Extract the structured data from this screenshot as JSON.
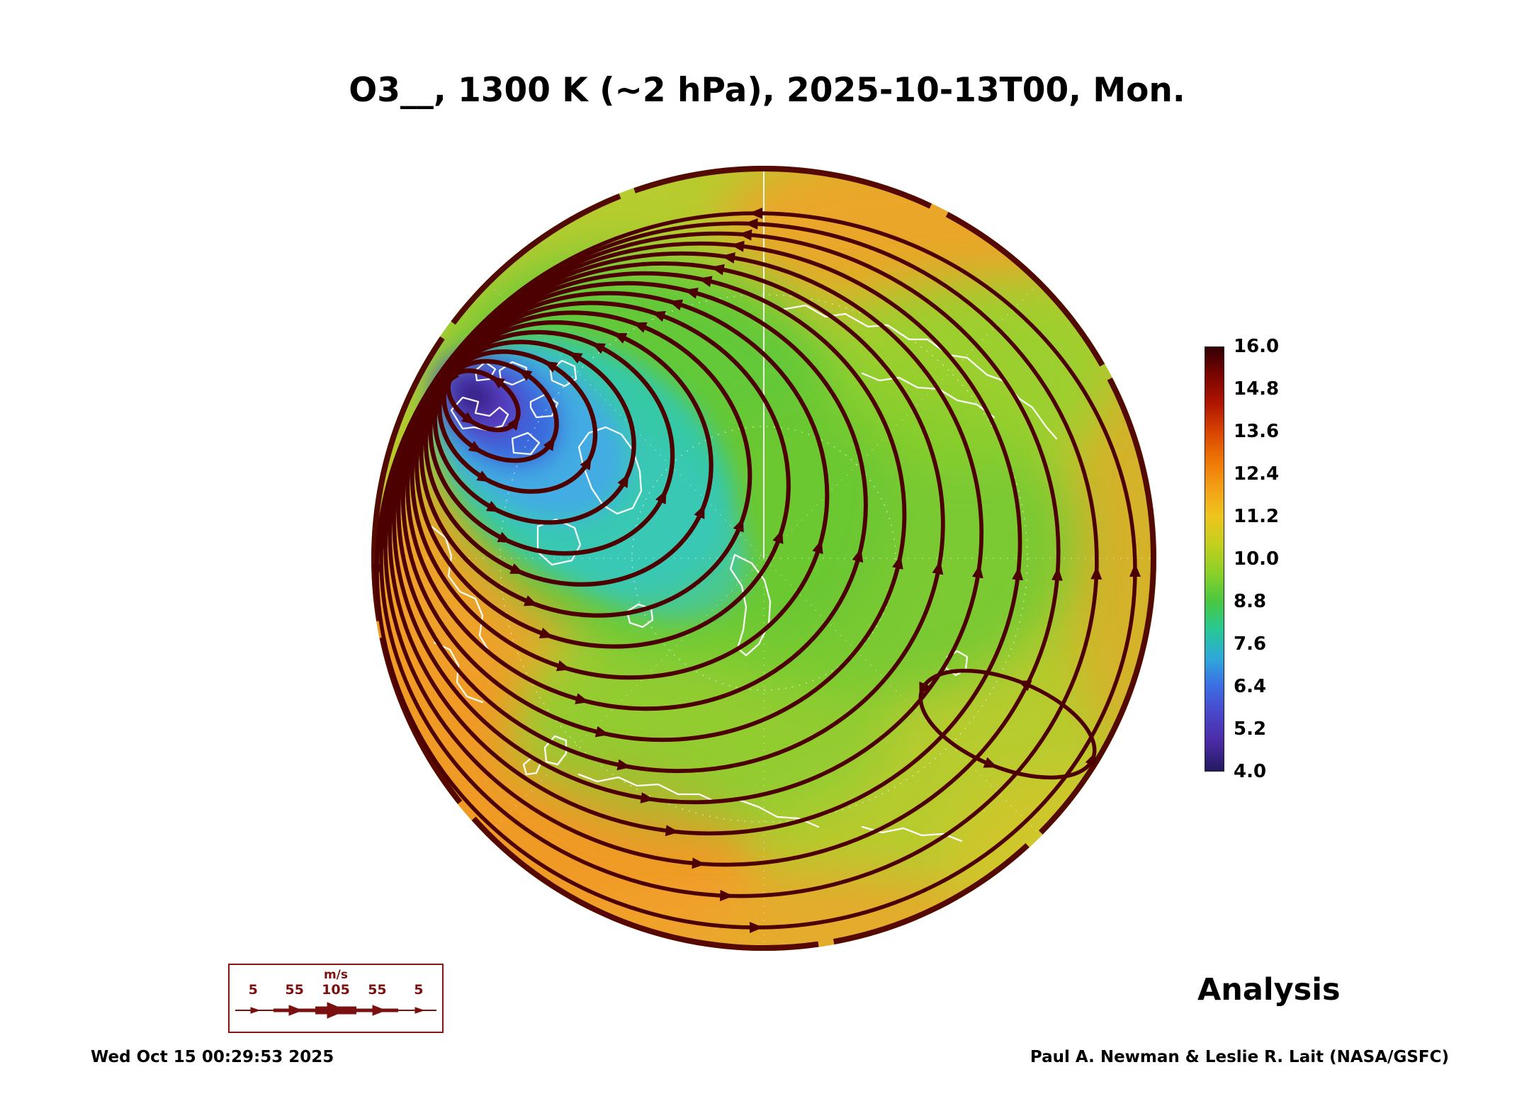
{
  "chart_data": {
    "type": "heatmap",
    "title": "O3__, 1300 K (~2 hPa), 2025-10-13T00, Mon.",
    "species": "O3",
    "level": "1300 K (~2 hPa)",
    "valid_time": "2025-10-13T00, Mon.",
    "product_label": "Analysis",
    "projection": "Northern Hemisphere polar disc",
    "colorbar": {
      "min": 4.0,
      "max": 16.0,
      "tick_values": [
        16.0,
        14.8,
        13.6,
        12.4,
        11.2,
        10.0,
        8.8,
        7.6,
        6.4,
        5.2,
        4.0
      ],
      "tick_labels": [
        "16.0",
        "14.8",
        "13.6",
        "12.4",
        "11.2",
        "10.0",
        "8.8",
        "7.6",
        "6.4",
        "5.2",
        "4.0"
      ],
      "gradient_top_to_bottom": [
        "#330004",
        "#7a0500",
        "#b01500",
        "#d84400",
        "#ee7504",
        "#f4a016",
        "#edc51d",
        "#c3cf1e",
        "#8ad028",
        "#49c841",
        "#27c895",
        "#2fa9da",
        "#3b6de4",
        "#4a45c8",
        "#4b2aa4",
        "#22195f"
      ]
    },
    "overlays": {
      "streamline_color": "#4d0000",
      "coastline_color": "#ffffff",
      "streamlines": "dark-red wind streamlines with arrowheads circulating around the polar vortex",
      "vortex_center": "blue/purple O3 minimum (approx 4-6) offset from the pole toward the Canadian Arctic (upper-left of disc)",
      "background_field": "green/yellow field (approx 10-12) with orange maxima (approx 12-13) near the disc edge"
    },
    "wind_speed_legend": {
      "units": "m/s",
      "tick_labels": [
        "5",
        "55",
        "105",
        "55",
        "5"
      ]
    }
  },
  "footer": {
    "timestamp": "Wed Oct 15 00:29:53 2025",
    "credit": "Paul A. Newman & Leslie R. Lait (NASA/GSFC)"
  }
}
